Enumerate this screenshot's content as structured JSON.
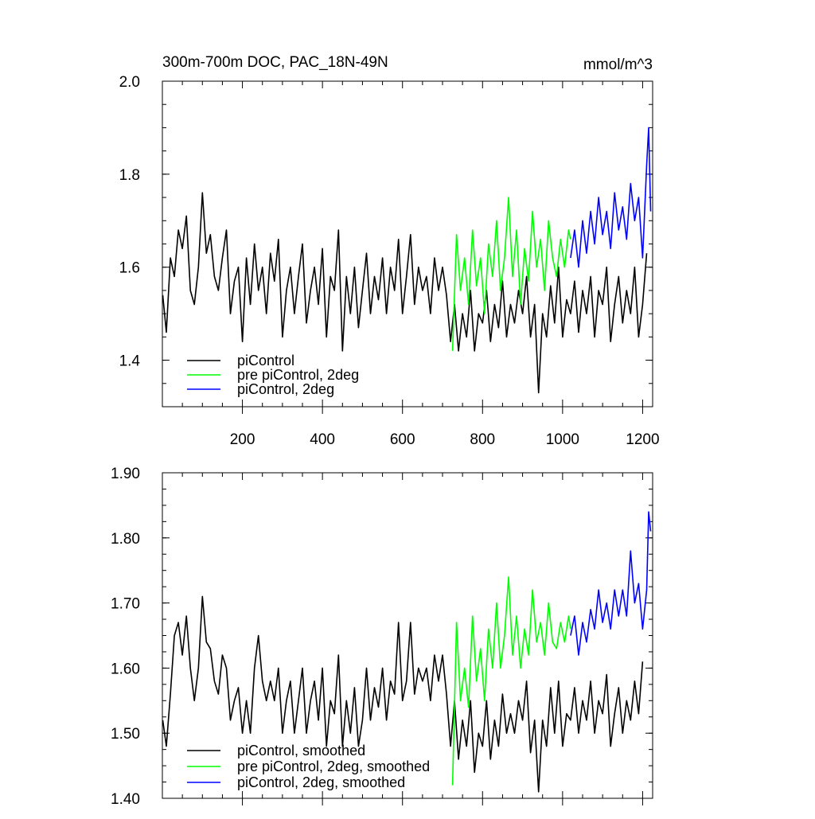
{
  "chart_data": [
    {
      "type": "line",
      "title": "300m-700m DOC, PAC_18N-49N",
      "units": "mmol/m^3",
      "xlim": [
        0,
        1225
      ],
      "ylim": [
        1.3,
        2.0
      ],
      "xticks": [
        200,
        400,
        600,
        800,
        1000,
        1200
      ],
      "xtick_labels": [
        "200",
        "400",
        "600",
        "800",
        "1000",
        "1200"
      ],
      "yticks": [
        1.4,
        1.6,
        1.8,
        2.0
      ],
      "ytick_labels": [
        "1.4",
        "1.6",
        "1.8",
        "2.0"
      ],
      "legend_position": "bottom-left",
      "series": [
        {
          "name": "piControl",
          "color": "#000000",
          "x": [
            1,
            10,
            20,
            30,
            40,
            50,
            60,
            70,
            80,
            90,
            100,
            110,
            120,
            130,
            140,
            150,
            160,
            170,
            180,
            190,
            200,
            210,
            220,
            230,
            240,
            250,
            260,
            270,
            280,
            290,
            300,
            310,
            320,
            330,
            340,
            350,
            360,
            370,
            380,
            390,
            400,
            410,
            420,
            430,
            440,
            450,
            460,
            470,
            480,
            490,
            500,
            510,
            520,
            530,
            540,
            550,
            560,
            570,
            580,
            590,
            600,
            610,
            620,
            630,
            640,
            650,
            660,
            670,
            680,
            690,
            700,
            710,
            720,
            730,
            740,
            750,
            760,
            770,
            780,
            790,
            800,
            810,
            820,
            830,
            840,
            850,
            860,
            870,
            880,
            890,
            900,
            910,
            920,
            930,
            940,
            950,
            960,
            970,
            980,
            990,
            1000,
            1010,
            1020,
            1030,
            1040,
            1050,
            1060,
            1070,
            1080,
            1090,
            1100,
            1110,
            1120,
            1130,
            1140,
            1150,
            1160,
            1170,
            1180,
            1190,
            1200,
            1210
          ],
          "values": [
            1.54,
            1.46,
            1.62,
            1.58,
            1.68,
            1.64,
            1.71,
            1.55,
            1.52,
            1.6,
            1.76,
            1.63,
            1.67,
            1.58,
            1.55,
            1.62,
            1.68,
            1.5,
            1.57,
            1.6,
            1.44,
            1.62,
            1.52,
            1.65,
            1.55,
            1.6,
            1.5,
            1.63,
            1.57,
            1.66,
            1.45,
            1.55,
            1.6,
            1.5,
            1.58,
            1.65,
            1.48,
            1.55,
            1.6,
            1.52,
            1.64,
            1.45,
            1.58,
            1.55,
            1.68,
            1.42,
            1.58,
            1.5,
            1.6,
            1.47,
            1.55,
            1.63,
            1.5,
            1.58,
            1.53,
            1.62,
            1.5,
            1.6,
            1.55,
            1.66,
            1.5,
            1.58,
            1.67,
            1.52,
            1.6,
            1.55,
            1.58,
            1.5,
            1.62,
            1.55,
            1.6,
            1.54,
            1.44,
            1.52,
            1.42,
            1.5,
            1.45,
            1.55,
            1.42,
            1.5,
            1.48,
            1.55,
            1.44,
            1.52,
            1.47,
            1.57,
            1.45,
            1.52,
            1.48,
            1.55,
            1.5,
            1.58,
            1.45,
            1.52,
            1.33,
            1.5,
            1.45,
            1.56,
            1.48,
            1.6,
            1.45,
            1.53,
            1.5,
            1.57,
            1.46,
            1.55,
            1.5,
            1.58,
            1.45,
            1.55,
            1.52,
            1.6,
            1.44,
            1.52,
            1.58,
            1.48,
            1.55,
            1.5,
            1.6,
            1.45,
            1.52,
            1.63
          ]
        },
        {
          "name": "pre piControl, 2deg",
          "color": "#00ff00",
          "x": [
            725,
            735,
            745,
            755,
            765,
            775,
            785,
            795,
            805,
            815,
            825,
            835,
            845,
            855,
            865,
            875,
            885,
            895,
            905,
            915,
            925,
            935,
            945,
            955,
            965,
            975,
            985,
            995,
            1005,
            1015,
            1020
          ],
          "values": [
            1.42,
            1.67,
            1.55,
            1.62,
            1.52,
            1.68,
            1.56,
            1.62,
            1.5,
            1.65,
            1.58,
            1.7,
            1.55,
            1.62,
            1.75,
            1.58,
            1.68,
            1.52,
            1.64,
            1.57,
            1.72,
            1.6,
            1.66,
            1.55,
            1.7,
            1.62,
            1.58,
            1.66,
            1.6,
            1.68,
            1.66
          ]
        },
        {
          "name": "piControl, 2deg",
          "color": "#0000ff",
          "x": [
            1020,
            1030,
            1040,
            1050,
            1060,
            1070,
            1080,
            1090,
            1100,
            1110,
            1120,
            1130,
            1140,
            1150,
            1160,
            1170,
            1180,
            1190,
            1200,
            1210,
            1215,
            1220
          ],
          "values": [
            1.62,
            1.68,
            1.6,
            1.7,
            1.63,
            1.72,
            1.65,
            1.75,
            1.67,
            1.72,
            1.64,
            1.76,
            1.68,
            1.73,
            1.66,
            1.78,
            1.7,
            1.75,
            1.62,
            1.82,
            1.9,
            1.72
          ]
        }
      ]
    },
    {
      "type": "line",
      "title": "",
      "xlim": [
        0,
        1225
      ],
      "ylim": [
        1.4,
        1.9
      ],
      "xticks": [
        200,
        400,
        600,
        800,
        1000,
        1200
      ],
      "yticks": [
        1.4,
        1.5,
        1.6,
        1.7,
        1.8,
        1.9
      ],
      "ytick_labels": [
        "1.40",
        "1.50",
        "1.60",
        "1.70",
        "1.80",
        "1.90"
      ],
      "legend_position": "bottom-left",
      "series": [
        {
          "name": "piControl, smoothed",
          "color": "#000000",
          "x": [
            1,
            10,
            20,
            30,
            40,
            50,
            60,
            70,
            80,
            90,
            100,
            110,
            120,
            130,
            140,
            150,
            160,
            170,
            180,
            190,
            200,
            210,
            220,
            230,
            240,
            250,
            260,
            270,
            280,
            290,
            300,
            310,
            320,
            330,
            340,
            350,
            360,
            370,
            380,
            390,
            400,
            410,
            420,
            430,
            440,
            450,
            460,
            470,
            480,
            490,
            500,
            510,
            520,
            530,
            540,
            550,
            560,
            570,
            580,
            590,
            600,
            610,
            620,
            630,
            640,
            650,
            660,
            670,
            680,
            690,
            700,
            710,
            720,
            730,
            740,
            750,
            760,
            770,
            780,
            790,
            800,
            810,
            820,
            830,
            840,
            850,
            860,
            870,
            880,
            890,
            900,
            910,
            920,
            930,
            940,
            950,
            960,
            970,
            980,
            990,
            1000,
            1010,
            1020,
            1030,
            1040,
            1050,
            1060,
            1070,
            1080,
            1090,
            1100,
            1110,
            1120,
            1130,
            1140,
            1150,
            1160,
            1170,
            1180,
            1190,
            1200
          ],
          "values": [
            1.52,
            1.48,
            1.56,
            1.65,
            1.67,
            1.62,
            1.68,
            1.6,
            1.55,
            1.6,
            1.71,
            1.64,
            1.63,
            1.58,
            1.56,
            1.62,
            1.6,
            1.52,
            1.55,
            1.57,
            1.5,
            1.55,
            1.5,
            1.6,
            1.65,
            1.58,
            1.55,
            1.58,
            1.55,
            1.6,
            1.5,
            1.55,
            1.58,
            1.5,
            1.55,
            1.6,
            1.5,
            1.55,
            1.58,
            1.52,
            1.6,
            1.48,
            1.55,
            1.53,
            1.62,
            1.48,
            1.55,
            1.5,
            1.57,
            1.48,
            1.52,
            1.6,
            1.52,
            1.57,
            1.54,
            1.6,
            1.52,
            1.58,
            1.56,
            1.67,
            1.55,
            1.58,
            1.67,
            1.56,
            1.6,
            1.58,
            1.6,
            1.55,
            1.62,
            1.58,
            1.62,
            1.56,
            1.48,
            1.55,
            1.46,
            1.52,
            1.48,
            1.55,
            1.44,
            1.5,
            1.48,
            1.55,
            1.46,
            1.52,
            1.48,
            1.56,
            1.5,
            1.53,
            1.5,
            1.55,
            1.52,
            1.58,
            1.47,
            1.52,
            1.41,
            1.52,
            1.48,
            1.57,
            1.5,
            1.58,
            1.48,
            1.53,
            1.52,
            1.57,
            1.5,
            1.55,
            1.52,
            1.58,
            1.5,
            1.55,
            1.53,
            1.59,
            1.48,
            1.53,
            1.57,
            1.5,
            1.55,
            1.52,
            1.58,
            1.53,
            1.61
          ]
        },
        {
          "name": "pre piControl, 2deg, smoothed",
          "color": "#00ff00",
          "x": [
            725,
            735,
            745,
            755,
            765,
            775,
            785,
            795,
            805,
            815,
            825,
            835,
            845,
            855,
            865,
            875,
            885,
            895,
            905,
            915,
            925,
            935,
            945,
            955,
            965,
            975,
            985,
            995,
            1005,
            1015,
            1020
          ],
          "values": [
            1.42,
            1.67,
            1.55,
            1.6,
            1.54,
            1.68,
            1.58,
            1.63,
            1.55,
            1.66,
            1.6,
            1.7,
            1.6,
            1.65,
            1.74,
            1.62,
            1.68,
            1.6,
            1.66,
            1.62,
            1.72,
            1.64,
            1.67,
            1.62,
            1.7,
            1.64,
            1.63,
            1.67,
            1.64,
            1.68,
            1.66
          ]
        },
        {
          "name": "piControl, 2deg, smoothed",
          "color": "#0000ff",
          "x": [
            1020,
            1030,
            1040,
            1050,
            1060,
            1070,
            1080,
            1090,
            1100,
            1110,
            1120,
            1130,
            1140,
            1150,
            1160,
            1170,
            1180,
            1190,
            1200,
            1210,
            1215,
            1220
          ],
          "values": [
            1.65,
            1.68,
            1.62,
            1.67,
            1.64,
            1.69,
            1.66,
            1.72,
            1.67,
            1.7,
            1.66,
            1.72,
            1.68,
            1.72,
            1.68,
            1.78,
            1.7,
            1.73,
            1.66,
            1.72,
            1.84,
            1.81
          ]
        }
      ]
    }
  ]
}
